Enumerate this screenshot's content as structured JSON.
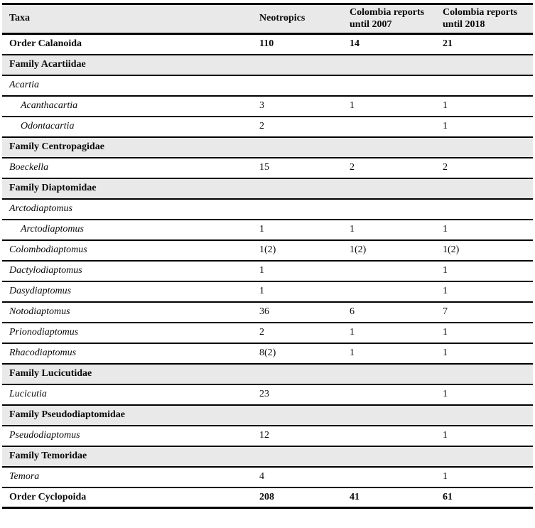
{
  "table": {
    "colors": {
      "section_row_bg": "#e9e9e9",
      "rule_color": "#000000",
      "text_color": "#0a0a0a"
    },
    "header": {
      "columns": [
        "Taxa",
        "Neotropics",
        "Colombia reports until 2007",
        "Colombia reports until 2018"
      ]
    },
    "rows": [
      {
        "type": "order",
        "taxa": "Order Calanoida",
        "neotropics": "110",
        "until2007": "14",
        "until2018": "21"
      },
      {
        "type": "family",
        "taxa": "Family Acartiidae"
      },
      {
        "type": "genus",
        "taxa": "Acartia",
        "neotropics": "",
        "until2007": "",
        "until2018": ""
      },
      {
        "type": "subgenus",
        "taxa": "Acanthacartia",
        "neotropics": "3",
        "until2007": "1",
        "until2018": "1"
      },
      {
        "type": "subgenus",
        "taxa": "Odontacartia",
        "neotropics": "2",
        "until2007": "",
        "until2018": "1"
      },
      {
        "type": "family",
        "taxa": "Family Centropagidae"
      },
      {
        "type": "genus",
        "taxa": "Boeckella",
        "neotropics": "15",
        "until2007": "2",
        "until2018": "2"
      },
      {
        "type": "family",
        "taxa": "Family Diaptomidae"
      },
      {
        "type": "genus",
        "taxa": "Arctodiaptomus",
        "neotropics": "",
        "until2007": "",
        "until2018": ""
      },
      {
        "type": "subgenus",
        "taxa": "Arctodiaptomus",
        "neotropics": "1",
        "until2007": "1",
        "until2018": "1"
      },
      {
        "type": "genus",
        "taxa": "Colombodiaptomus",
        "neotropics": "1(2)",
        "until2007": "1(2)",
        "until2018": "1(2)"
      },
      {
        "type": "genus",
        "taxa": "Dactylodiaptomus",
        "neotropics": "1",
        "until2007": "",
        "until2018": "1"
      },
      {
        "type": "genus",
        "taxa": "Dasydiaptomus",
        "neotropics": "1",
        "until2007": "",
        "until2018": "1"
      },
      {
        "type": "genus",
        "taxa": "Notodiaptomus",
        "neotropics": "36",
        "until2007": "6",
        "until2018": "7"
      },
      {
        "type": "genus",
        "taxa": "Prionodiaptomus",
        "neotropics": "2",
        "until2007": "1",
        "until2018": "1"
      },
      {
        "type": "genus",
        "taxa": "Rhacodiaptomus",
        "neotropics": "8(2)",
        "until2007": "1",
        "until2018": "1"
      },
      {
        "type": "family",
        "taxa": "Family Lucicutidae"
      },
      {
        "type": "genus",
        "taxa": "Lucicutia",
        "neotropics": "23",
        "until2007": "",
        "until2018": "1"
      },
      {
        "type": "family",
        "taxa": "Family Pseudodiaptomidae"
      },
      {
        "type": "genus",
        "taxa": "Pseudodiaptomus",
        "neotropics": "12",
        "until2007": "",
        "until2018": "1"
      },
      {
        "type": "family",
        "taxa": "Family Temoridae"
      },
      {
        "type": "genus",
        "taxa": "Temora",
        "neotropics": "4",
        "until2007": "",
        "until2018": "1"
      },
      {
        "type": "order",
        "taxa": "Order Cyclopoida",
        "neotropics": "208",
        "until2007": "41",
        "until2018": "61"
      }
    ]
  }
}
